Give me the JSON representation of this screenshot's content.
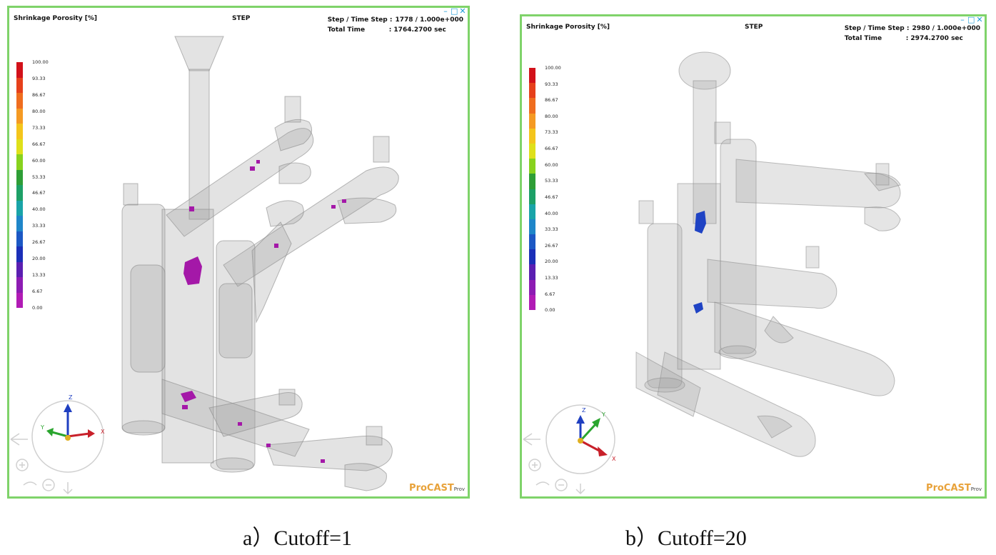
{
  "legend": {
    "ticks": [
      "100.00",
      "93.33",
      "86.67",
      "80.00",
      "73.33",
      "66.67",
      "60.00",
      "53.33",
      "46.67",
      "40.00",
      "33.33",
      "26.67",
      "20.00",
      "13.33",
      "6.67",
      "0.00"
    ],
    "colors": [
      "#d2111a",
      "#e6401b",
      "#ef6d1f",
      "#f59a23",
      "#f4c51c",
      "#dfe01a",
      "#88d21e",
      "#2e9e36",
      "#1da067",
      "#19a4a8",
      "#1f86c9",
      "#1c58c4",
      "#1b2fb8",
      "#5b1fb1",
      "#8d1cb3",
      "#b11bb5"
    ]
  },
  "panels": [
    {
      "result_label": "Shrinkage  Porosity  [%]",
      "stage": "STEP",
      "step_label": "Step  /  Time  Step :",
      "step_value": "1778  /  1.000e+000",
      "time_label": "Total   Time",
      "time_value": ":  1764.2700  sec",
      "brand": "ProCAST",
      "brand_suffix": "Prov",
      "defect_color": "#a418a8",
      "caption": "a）Cutoff=1"
    },
    {
      "result_label": "Shrinkage  Porosity  [%]",
      "stage": "STEP",
      "step_label": "Step  /  Time  Step :",
      "step_value": "2980  /  1.000e+000",
      "time_label": "Total   Time",
      "time_value": ":  2974.2700  sec",
      "brand": "ProCAST",
      "brand_suffix": "Prov",
      "defect_color": "#1f43c4",
      "caption": "b）Cutoff=20"
    }
  ],
  "window_controls": {
    "minimize": "–",
    "maximize": "□",
    "close": "✕"
  },
  "axes": {
    "x": "X",
    "y": "Y",
    "z": "Z",
    "x_color": "#c8202a",
    "y_color": "#2aa52e",
    "z_color": "#1f3fc0"
  }
}
